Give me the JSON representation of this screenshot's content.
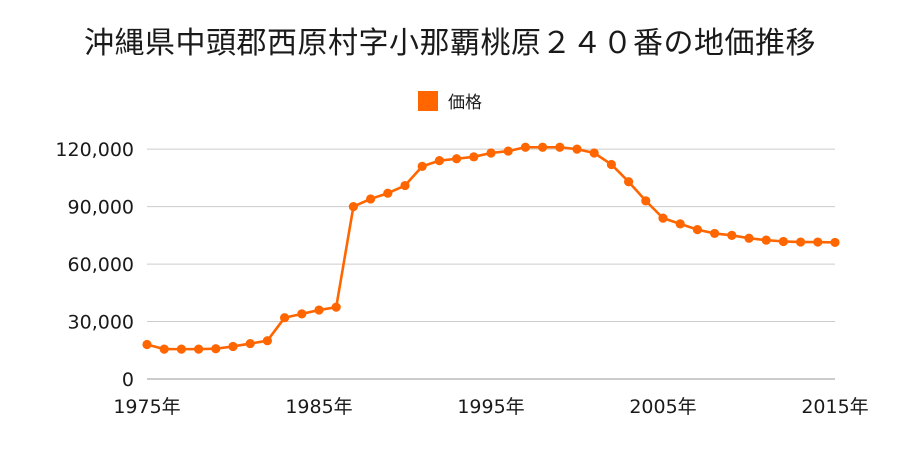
{
  "title": "沖縄県中頭郡西原村字小那覇桃原２４０番の地価推移",
  "legend": {
    "label": "価格",
    "color": "#ff6600"
  },
  "chart_data": {
    "type": "line",
    "title": "沖縄県中頭郡西原村字小那覇桃原２４０番の地価推移",
    "xlabel": "",
    "ylabel": "",
    "x": [
      1975,
      1976,
      1977,
      1978,
      1979,
      1980,
      1981,
      1982,
      1983,
      1984,
      1985,
      1986,
      1987,
      1988,
      1989,
      1990,
      1991,
      1992,
      1993,
      1994,
      1995,
      1996,
      1997,
      1998,
      1999,
      2000,
      2001,
      2002,
      2003,
      2004,
      2005,
      2006,
      2007,
      2008,
      2009,
      2010,
      2011,
      2012,
      2013,
      2014,
      2015
    ],
    "series": [
      {
        "name": "価格",
        "color": "#ff6600",
        "values": [
          18000,
          15600,
          15600,
          15600,
          15800,
          17000,
          18500,
          20000,
          32000,
          34000,
          36000,
          37500,
          90000,
          94000,
          97000,
          101000,
          111000,
          114000,
          115000,
          116000,
          118000,
          119000,
          121000,
          121000,
          121000,
          120000,
          118000,
          112000,
          103000,
          93000,
          84000,
          81000,
          78000,
          76000,
          75000,
          73500,
          72500,
          71800,
          71500,
          71500,
          71300
        ]
      }
    ],
    "xlim": [
      1975,
      2015
    ],
    "ylim": [
      0,
      130000
    ],
    "y_ticks": [
      0,
      30000,
      60000,
      90000,
      120000
    ],
    "y_tick_labels": [
      "0",
      "30,000",
      "60,000",
      "90,000",
      "120,000"
    ],
    "x_ticks": [
      1975,
      1985,
      1995,
      2005,
      2015
    ],
    "x_tick_labels": [
      "1975年",
      "1985年",
      "1995年",
      "2005年",
      "2015年"
    ],
    "grid": true,
    "legend_position": "top-center"
  }
}
